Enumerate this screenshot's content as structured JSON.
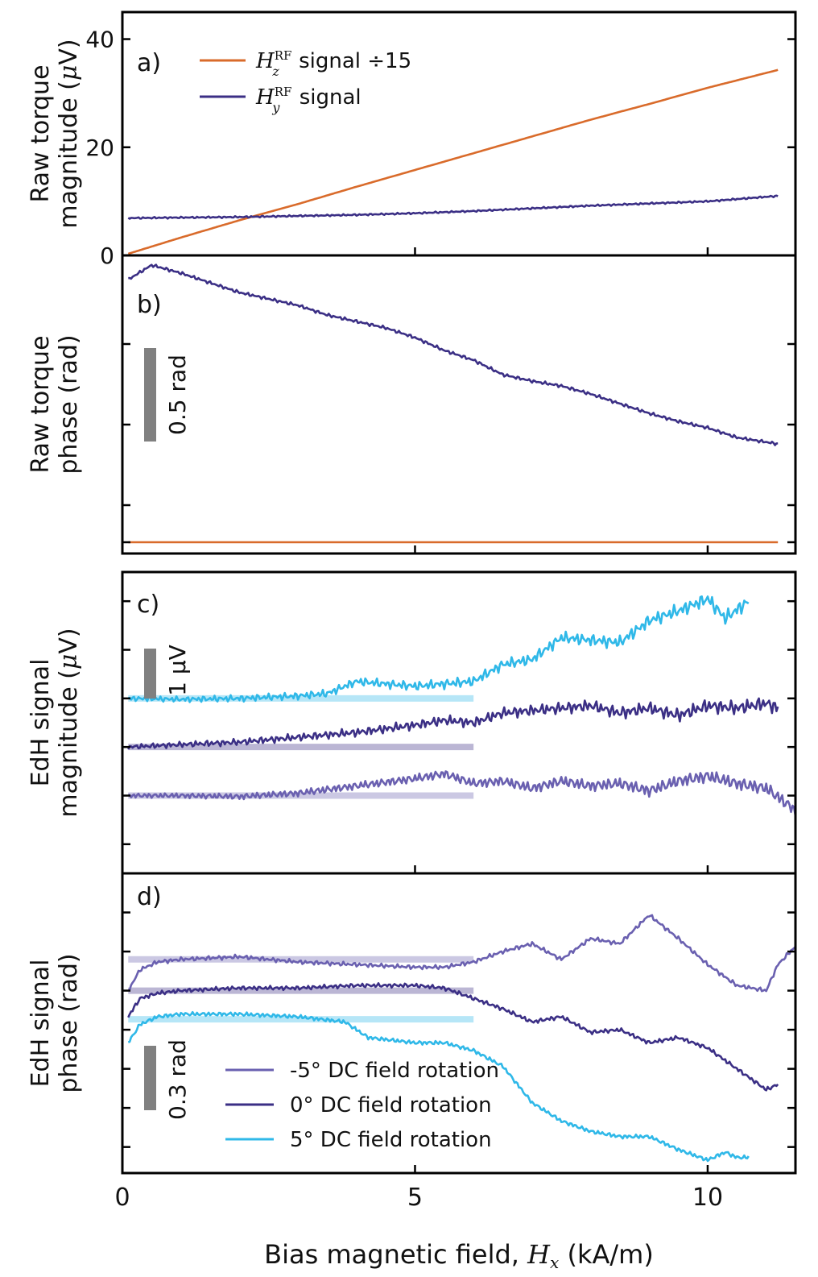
{
  "figure": {
    "x_axis": {
      "label_prefix": "Bias magnetic field, ",
      "label_var": "H",
      "label_sub": "x",
      "label_suffix": " (kA/m)",
      "range": [
        0,
        11.5
      ],
      "ticks": [
        0,
        5,
        10
      ],
      "tick_labels": [
        "0",
        "5",
        "10"
      ]
    },
    "colors": {
      "orange": "#d96b2b",
      "dark_purple": "#3b2f85",
      "mid_purple": "#6a60b0",
      "light_blue": "#2fb8e8",
      "scale_bar": "#808080"
    }
  },
  "chart_data": [
    {
      "panel_label": "a)",
      "type": "line",
      "ylabel_line1": "Raw torque",
      "ylabel_line2_prefix": "magnitude (",
      "ylabel_unit_greek": "μ",
      "ylabel_line2_suffix": "V)",
      "xlim": [
        0,
        11.5
      ],
      "ylim": [
        0,
        45
      ],
      "yticks": [
        0,
        20,
        40
      ],
      "ytick_labels": [
        "0",
        "20",
        "40"
      ],
      "legend_placement": "upper-left",
      "series": [
        {
          "name": "H_z^RF signal ÷15",
          "legend_var": "H",
          "legend_sub": "z",
          "legend_sup": "RF",
          "legend_text": " signal ÷15",
          "color": "#d96b2b",
          "x": [
            0.1,
            1,
            2,
            3,
            4,
            5,
            6,
            7,
            8,
            9,
            10,
            11.2
          ],
          "y": [
            0.3,
            3.3,
            6.5,
            9.5,
            12.7,
            15.8,
            18.9,
            22.0,
            25.1,
            28.0,
            31.0,
            34.3
          ]
        },
        {
          "name": "H_y^RF signal",
          "legend_var": "H",
          "legend_sub": "y",
          "legend_sup": "RF",
          "legend_text": " signal",
          "color": "#3b2f85",
          "x": [
            0.1,
            1,
            2,
            3,
            4,
            5,
            6,
            7,
            8,
            9,
            10,
            11.2
          ],
          "y": [
            6.9,
            7.0,
            7.1,
            7.3,
            7.5,
            7.8,
            8.2,
            8.7,
            9.2,
            9.6,
            10.0,
            11.0
          ]
        }
      ]
    },
    {
      "panel_label": "b)",
      "type": "line",
      "ylabel_line1": "Raw torque",
      "ylabel_line2": "phase (rad)",
      "xlim": [
        0,
        11.5
      ],
      "ylim": [
        -1.8,
        0.05
      ],
      "scale_bar_label": "0.5 rad",
      "scale_bar_value": 0.5,
      "series": [
        {
          "color": "#3b2f85",
          "x": [
            0.1,
            0.5,
            1,
            1.5,
            2,
            3,
            3.5,
            4,
            4.5,
            5,
            5.5,
            6,
            6.5,
            7,
            7.5,
            8,
            8.5,
            9,
            9.5,
            10,
            10.5,
            11.2
          ],
          "y": [
            -0.1,
            -0.01,
            -0.06,
            -0.12,
            -0.18,
            -0.26,
            -0.32,
            -0.36,
            -0.4,
            -0.46,
            -0.54,
            -0.6,
            -0.69,
            -0.73,
            -0.76,
            -0.81,
            -0.87,
            -0.93,
            -0.98,
            -1.02,
            -1.08,
            -1.12
          ]
        },
        {
          "color": "#d96b2b",
          "x": [
            0.1,
            11.2
          ],
          "y": [
            -1.73,
            -1.73
          ]
        }
      ]
    },
    {
      "panel_label": "c)",
      "type": "line",
      "ylabel_line1": "EdH signal",
      "ylabel_line2_prefix": "magnitude (",
      "ylabel_unit_greek": "μ",
      "ylabel_line2_suffix": "V)",
      "xlim": [
        0,
        11.5
      ],
      "ylim": [
        -0.6,
        5.6
      ],
      "scale_bar_label": "1 μV",
      "scale_bar_value": 1,
      "reference_bands_until_x": 6,
      "series": [
        {
          "name": "-5° DC field rotation",
          "color": "#6a60b0",
          "baseline": 1.0,
          "x": [
            0.1,
            1,
            2,
            3,
            4,
            5,
            5.5,
            6,
            6.5,
            7,
            7.5,
            8,
            8.5,
            9,
            9.5,
            10,
            10.5,
            11,
            11.5
          ],
          "y": [
            1.0,
            1.0,
            0.98,
            1.05,
            1.2,
            1.35,
            1.45,
            1.25,
            1.3,
            1.15,
            1.3,
            1.2,
            1.25,
            1.1,
            1.3,
            1.4,
            1.25,
            1.15,
            0.7
          ]
        },
        {
          "name": "0° DC field rotation",
          "color": "#3b2f85",
          "baseline": 2.0,
          "x": [
            0.1,
            1,
            2,
            3,
            4,
            5,
            5.5,
            6,
            6.5,
            7,
            7.5,
            8,
            8.5,
            9,
            9.5,
            10,
            10.5,
            11,
            11.2
          ],
          "y": [
            2.0,
            2.05,
            2.1,
            2.2,
            2.3,
            2.45,
            2.55,
            2.5,
            2.7,
            2.75,
            2.8,
            2.85,
            2.7,
            2.8,
            2.65,
            2.85,
            2.8,
            2.9,
            2.8
          ]
        },
        {
          "name": "5° DC field rotation",
          "color": "#2fb8e8",
          "baseline": 3.0,
          "x": [
            0.1,
            1,
            2,
            3,
            3.5,
            4,
            4.5,
            5,
            5.5,
            6,
            6.5,
            7,
            7.5,
            8,
            8.5,
            9,
            9.5,
            10,
            10.3,
            10.7
          ],
          "y": [
            3.0,
            2.98,
            3.0,
            3.05,
            3.1,
            3.35,
            3.3,
            3.25,
            3.3,
            3.35,
            3.7,
            3.8,
            4.25,
            4.2,
            4.15,
            4.6,
            4.8,
            5.05,
            4.65,
            5.0
          ]
        }
      ]
    },
    {
      "panel_label": "d)",
      "type": "line",
      "ylabel_line1": "EdH signal",
      "ylabel_line2": "phase (rad)",
      "xlim": [
        0,
        11.5
      ],
      "ylim": [
        -0.1,
        1.05
      ],
      "scale_bar_label": "0.3 rad",
      "scale_bar_value": 0.3,
      "reference_bands_until_x": 6,
      "legend_placement": "lower-center",
      "series": [
        {
          "name": "-5° DC field rotation",
          "legend_text": "-5° DC field rotation",
          "color": "#6a60b0",
          "baseline": 0.72,
          "x": [
            0.1,
            0.3,
            0.6,
            1,
            2,
            3,
            4,
            5,
            5.5,
            6,
            6.5,
            7,
            7.5,
            8,
            8.5,
            9,
            9.5,
            10,
            10.5,
            11,
            11.2,
            11.5
          ],
          "y": [
            0.6,
            0.68,
            0.71,
            0.72,
            0.73,
            0.71,
            0.7,
            0.69,
            0.69,
            0.71,
            0.75,
            0.78,
            0.72,
            0.8,
            0.78,
            0.89,
            0.8,
            0.7,
            0.62,
            0.6,
            0.7,
            0.77
          ]
        },
        {
          "name": "0° DC field rotation",
          "legend_text": "0° DC field rotation",
          "color": "#3b2f85",
          "baseline": 0.6,
          "x": [
            0.1,
            0.3,
            0.6,
            1,
            2,
            3,
            4,
            5,
            5.5,
            6,
            6.5,
            7,
            7.5,
            8,
            8.5,
            9,
            9.5,
            10,
            10.5,
            11,
            11.2
          ],
          "y": [
            0.5,
            0.57,
            0.59,
            0.6,
            0.61,
            0.61,
            0.62,
            0.62,
            0.61,
            0.57,
            0.53,
            0.48,
            0.5,
            0.44,
            0.45,
            0.4,
            0.42,
            0.38,
            0.3,
            0.22,
            0.24
          ]
        },
        {
          "name": "5° DC field rotation",
          "legend_text": "5° DC field rotation",
          "color": "#2fb8e8",
          "baseline": 0.49,
          "x": [
            0.1,
            0.3,
            0.6,
            1,
            2,
            3,
            3.8,
            4.2,
            5,
            5.5,
            6,
            6.5,
            7,
            7.5,
            8,
            8.5,
            9,
            9.5,
            10,
            10.3,
            10.5,
            10.7
          ],
          "y": [
            0.4,
            0.47,
            0.5,
            0.51,
            0.51,
            0.5,
            0.48,
            0.42,
            0.4,
            0.4,
            0.37,
            0.31,
            0.17,
            0.1,
            0.06,
            0.04,
            0.04,
            -0.01,
            -0.05,
            -0.02,
            -0.04,
            -0.04
          ]
        }
      ]
    }
  ]
}
